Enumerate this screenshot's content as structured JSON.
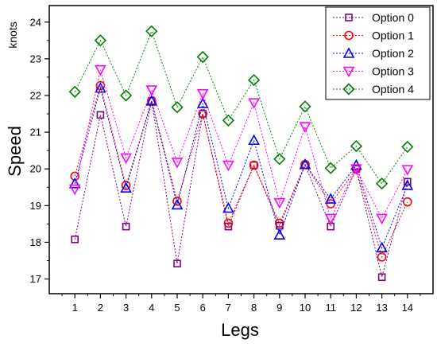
{
  "chart_data": {
    "type": "line",
    "title": "",
    "xlabel": "Legs",
    "ylabel": "Speed",
    "yunit": "knots",
    "x": [
      1,
      2,
      3,
      4,
      5,
      6,
      7,
      8,
      9,
      10,
      11,
      12,
      13,
      14
    ],
    "xlim": [
      0,
      15
    ],
    "ylim": [
      16.6,
      24.45
    ],
    "yticks": [
      17,
      18,
      19,
      20,
      21,
      22,
      23,
      24
    ],
    "legend_position": "top-right",
    "line_style": "dotted",
    "series": [
      {
        "name": "Option 0",
        "color": "#800080",
        "marker": "square",
        "values": [
          18.08,
          21.47,
          18.43,
          21.85,
          17.42,
          21.5,
          18.43,
          20.1,
          18.45,
          20.1,
          18.43,
          20.0,
          17.05,
          19.65
        ]
      },
      {
        "name": "Option 1",
        "color": "#ff0000",
        "marker": "circle",
        "values": [
          19.8,
          22.27,
          19.55,
          21.85,
          19.12,
          21.5,
          18.52,
          20.1,
          18.52,
          20.12,
          19.05,
          20.0,
          17.6,
          19.1
        ]
      },
      {
        "name": "Option 2",
        "color": "#0000ff",
        "marker": "triangle-up",
        "values": [
          19.6,
          22.2,
          19.48,
          21.85,
          19.02,
          21.78,
          18.93,
          20.78,
          18.2,
          20.12,
          19.18,
          20.1,
          17.85,
          19.55
        ]
      },
      {
        "name": "Option 3",
        "color": "#ff00ff",
        "marker": "triangle-down",
        "values": [
          19.45,
          22.7,
          20.3,
          22.15,
          20.18,
          22.05,
          20.1,
          21.8,
          19.08,
          21.15,
          18.65,
          20.0,
          18.65,
          19.98
        ]
      },
      {
        "name": "Option 4",
        "color": "#008000",
        "marker": "diamond",
        "values": [
          22.1,
          23.5,
          22.0,
          23.75,
          21.68,
          23.05,
          21.32,
          22.42,
          20.27,
          21.7,
          20.02,
          20.62,
          19.6,
          20.6
        ]
      }
    ]
  }
}
